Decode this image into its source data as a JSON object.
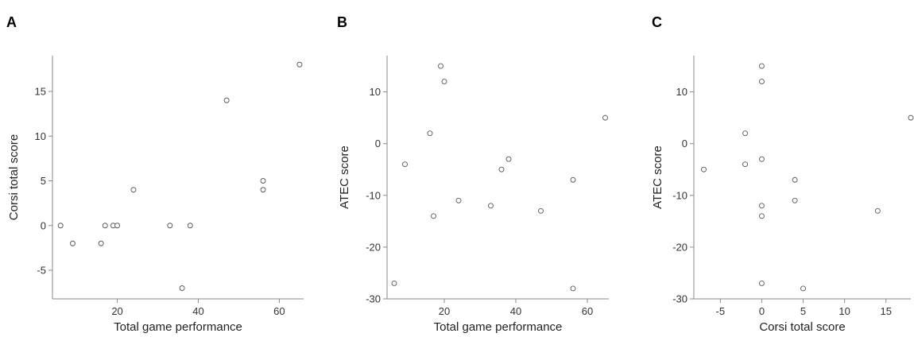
{
  "chart_data": [
    {
      "type": "scatter",
      "panel": "A",
      "xlabel": "Total game performance",
      "ylabel": "Corsi total score",
      "xlim": [
        4,
        66
      ],
      "ylim": [
        -8.2,
        19
      ],
      "xticks": [
        20,
        40,
        60
      ],
      "yticks": [
        -5,
        0,
        5,
        10,
        15
      ],
      "points": [
        {
          "x": 6,
          "y": 0
        },
        {
          "x": 9,
          "y": -2
        },
        {
          "x": 16,
          "y": -2
        },
        {
          "x": 17,
          "y": 0
        },
        {
          "x": 19,
          "y": 0
        },
        {
          "x": 20,
          "y": 0
        },
        {
          "x": 24,
          "y": 4
        },
        {
          "x": 33,
          "y": 0
        },
        {
          "x": 36,
          "y": -7
        },
        {
          "x": 38,
          "y": 0
        },
        {
          "x": 47,
          "y": 14
        },
        {
          "x": 56,
          "y": 5
        },
        {
          "x": 56,
          "y": 4
        },
        {
          "x": 65,
          "y": 18
        }
      ]
    },
    {
      "type": "scatter",
      "panel": "B",
      "xlabel": "Total game performance",
      "ylabel": "ATEC score",
      "xlim": [
        4,
        66
      ],
      "ylim": [
        -30,
        17
      ],
      "xticks": [
        20,
        40,
        60
      ],
      "yticks": [
        -30,
        -20,
        -10,
        0,
        10
      ],
      "points": [
        {
          "x": 6,
          "y": -27
        },
        {
          "x": 9,
          "y": -4
        },
        {
          "x": 16,
          "y": 2
        },
        {
          "x": 17,
          "y": -14
        },
        {
          "x": 19,
          "y": 15
        },
        {
          "x": 20,
          "y": 12
        },
        {
          "x": 24,
          "y": -11
        },
        {
          "x": 33,
          "y": -12
        },
        {
          "x": 36,
          "y": -5
        },
        {
          "x": 38,
          "y": -3
        },
        {
          "x": 47,
          "y": -13
        },
        {
          "x": 56,
          "y": -7
        },
        {
          "x": 56,
          "y": -28
        },
        {
          "x": 65,
          "y": 5
        }
      ]
    },
    {
      "type": "scatter",
      "panel": "C",
      "xlabel": "Corsi total score",
      "ylabel": "ATEC score",
      "xlim": [
        -8.2,
        18
      ],
      "ylim": [
        -30,
        17
      ],
      "xticks": [
        -5,
        0,
        5,
        10,
        15
      ],
      "yticks": [
        -30,
        -20,
        -10,
        0,
        10
      ],
      "points": [
        {
          "x": -7,
          "y": -5
        },
        {
          "x": -2,
          "y": 2
        },
        {
          "x": -2,
          "y": -4
        },
        {
          "x": 0,
          "y": 15
        },
        {
          "x": 0,
          "y": 12
        },
        {
          "x": 0,
          "y": -3
        },
        {
          "x": 0,
          "y": -12
        },
        {
          "x": 0,
          "y": -14
        },
        {
          "x": 0,
          "y": -27
        },
        {
          "x": 4,
          "y": -7
        },
        {
          "x": 4,
          "y": -11
        },
        {
          "x": 5,
          "y": -28
        },
        {
          "x": 14,
          "y": -13
        },
        {
          "x": 18,
          "y": 5
        }
      ]
    }
  ]
}
